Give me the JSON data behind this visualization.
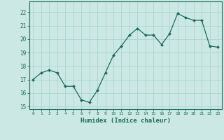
{
  "x": [
    0,
    1,
    2,
    3,
    4,
    5,
    6,
    7,
    8,
    9,
    10,
    11,
    12,
    13,
    14,
    15,
    16,
    17,
    18,
    19,
    20,
    21,
    22,
    23
  ],
  "y": [
    17.0,
    17.5,
    17.7,
    17.5,
    16.5,
    16.5,
    15.5,
    15.3,
    16.2,
    17.5,
    18.8,
    19.5,
    20.3,
    20.8,
    20.3,
    20.3,
    19.6,
    20.4,
    21.9,
    21.6,
    21.4,
    21.4,
    19.5,
    19.4
  ],
  "xlabel": "Humidex (Indice chaleur)",
  "ylabel": "",
  "xlim": [
    -0.5,
    23.5
  ],
  "ylim": [
    14.8,
    22.8
  ],
  "yticks": [
    15,
    16,
    17,
    18,
    19,
    20,
    21,
    22
  ],
  "xticks": [
    0,
    1,
    2,
    3,
    4,
    5,
    6,
    7,
    8,
    9,
    10,
    11,
    12,
    13,
    14,
    15,
    16,
    17,
    18,
    19,
    20,
    21,
    22,
    23
  ],
  "line_color": "#1a6b5a",
  "marker_color": "#1a6b5a",
  "bg_color": "#cce8e4",
  "grid_color": "#aad4d0",
  "text_color": "#1a6b5a",
  "border_color": "#1a6b5a"
}
